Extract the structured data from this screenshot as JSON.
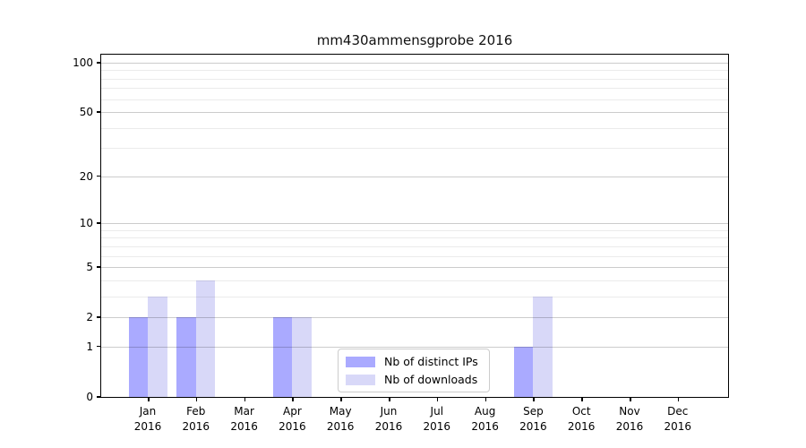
{
  "title": "mm430ammensgprobe 2016",
  "colors": {
    "distinct_ips": "#aaaaff",
    "downloads": "#d8d8f8",
    "grid_major": "#cccccc",
    "grid_minor": "#ebebeb",
    "axis": "#000000"
  },
  "legend": {
    "position": "lower center",
    "items": [
      {
        "label": "Nb of distinct IPs",
        "color_key": "distinct_ips"
      },
      {
        "label": "Nb of downloads",
        "color_key": "downloads"
      }
    ]
  },
  "chart_data": {
    "type": "bar",
    "title": "mm430ammensgprobe 2016",
    "categories": [
      {
        "month": "Jan",
        "year": "2016"
      },
      {
        "month": "Feb",
        "year": "2016"
      },
      {
        "month": "Mar",
        "year": "2016"
      },
      {
        "month": "Apr",
        "year": "2016"
      },
      {
        "month": "May",
        "year": "2016"
      },
      {
        "month": "Jun",
        "year": "2016"
      },
      {
        "month": "Jul",
        "year": "2016"
      },
      {
        "month": "Aug",
        "year": "2016"
      },
      {
        "month": "Sep",
        "year": "2016"
      },
      {
        "month": "Oct",
        "year": "2016"
      },
      {
        "month": "Nov",
        "year": "2016"
      },
      {
        "month": "Dec",
        "year": "2016"
      }
    ],
    "series": [
      {
        "name": "Nb of distinct IPs",
        "values": [
          2,
          2,
          0,
          2,
          0,
          0,
          0,
          0,
          1,
          0,
          0,
          0
        ]
      },
      {
        "name": "Nb of downloads",
        "values": [
          3,
          4,
          0,
          2,
          0,
          0,
          0,
          0,
          3,
          0,
          0,
          0
        ]
      }
    ],
    "yscale": "log10(1+y)",
    "ylim": [
      0,
      112
    ],
    "yticks": [
      0,
      1,
      2,
      5,
      10,
      20,
      50,
      100
    ],
    "y_minor_gridlines": [
      3,
      4,
      6,
      7,
      8,
      9,
      30,
      40,
      60,
      70,
      80,
      90
    ],
    "grid": true,
    "legend_position": "lower center"
  }
}
